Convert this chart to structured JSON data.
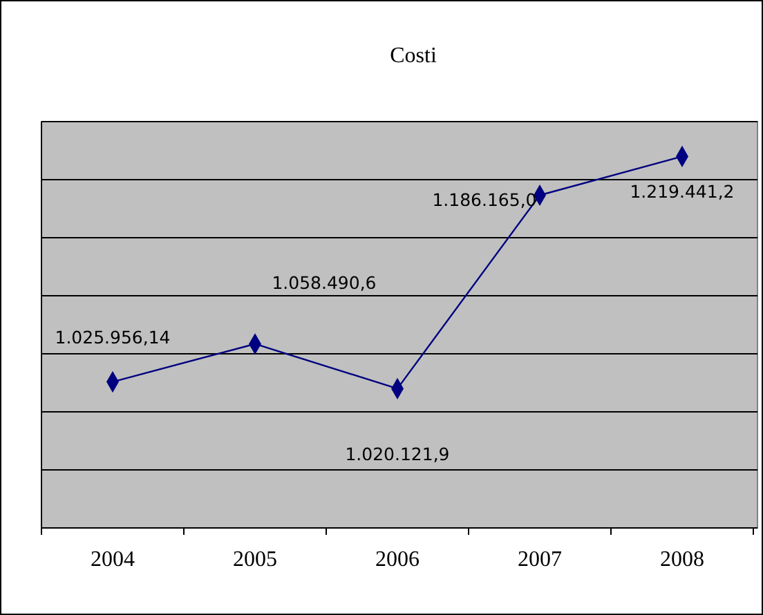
{
  "chart_data": {
    "type": "line",
    "title": "Costi",
    "categories": [
      "2004",
      "2005",
      "2006",
      "2007",
      "2008"
    ],
    "series": [
      {
        "color": "#000080",
        "values": [
          1025956.14,
          1058490.6,
          1020121.9,
          1186165.0,
          1219441.2
        ],
        "value_labels": [
          "1.025.956,14",
          "1.058.490,6",
          "1.020.121,9",
          "1.186.165,0",
          "1.219.441,2"
        ]
      }
    ],
    "tick_labels": "x",
    "grid": "y",
    "marker": "diamond"
  }
}
